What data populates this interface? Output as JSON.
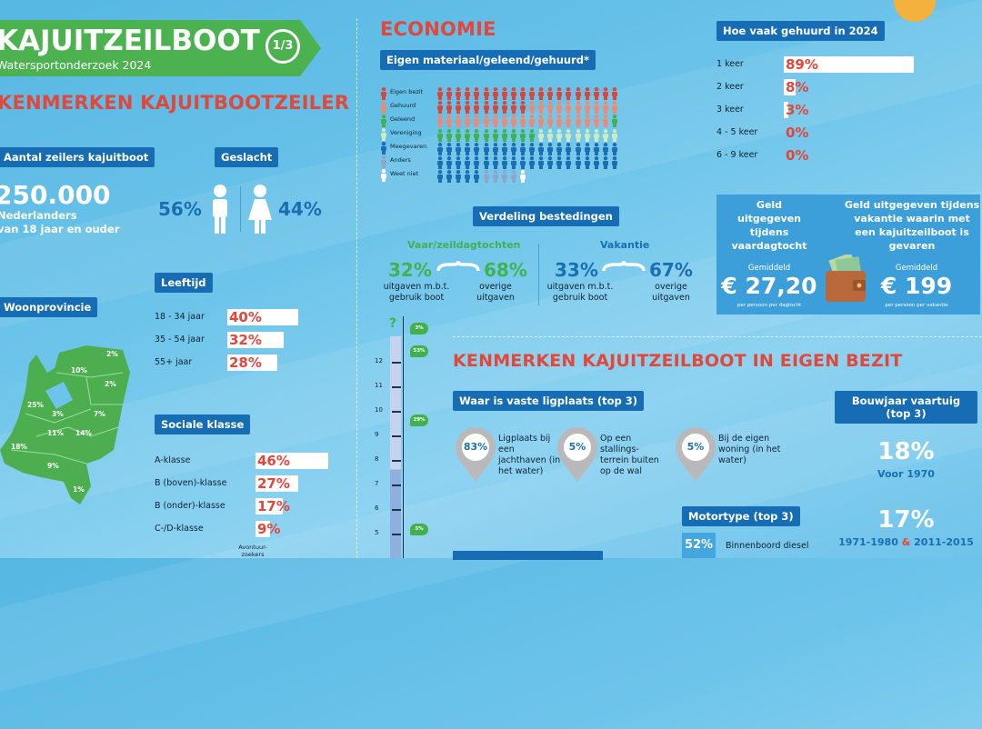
{
  "header": {
    "title": "KAJUITZEILBOOT",
    "subtitle": "Watersportonderzoek 2024",
    "page": "1/3"
  },
  "section1": {
    "title": "KENMERKEN KAJUITBOOTZEILER"
  },
  "aantal": {
    "label": "Aantal zeilers kajuitboot",
    "value": "250.000",
    "line1": "Nederlanders",
    "line2": "van 18 jaar en ouder"
  },
  "geslacht": {
    "label": "Geslacht",
    "male": "56%",
    "female": "44%"
  },
  "leeftijd": {
    "label": "Leeftijd",
    "rows": [
      {
        "label": "18 - 34 jaar",
        "value": "40%",
        "pct": 40
      },
      {
        "label": "35 - 54 jaar",
        "value": "32%",
        "pct": 32
      },
      {
        "label": "55+ jaar",
        "value": "28%",
        "pct": 28
      }
    ]
  },
  "woonprovincie": {
    "label": "Woonprovincie",
    "regions": [
      "2%",
      "10%",
      "2%",
      "25%",
      "3%",
      "7%",
      "11%",
      "14%",
      "18%",
      "9%",
      "1%"
    ]
  },
  "sociale": {
    "label": "Sociale klasse",
    "rows": [
      {
        "label": "A-klasse",
        "value": "46%",
        "pct": 46
      },
      {
        "label": "B (boven)-klasse",
        "value": "27%",
        "pct": 27
      },
      {
        "label": "B (onder)-klasse",
        "value": "17%",
        "pct": 17
      },
      {
        "label": "C-/D-klasse",
        "value": "9%",
        "pct": 9
      }
    ],
    "note": "Avontuur-zoekers"
  },
  "economie": {
    "title": "ECONOMIE",
    "materiaal_label": "Eigen materiaal/geleend/gehuurd*",
    "legend": [
      {
        "label": "Eigen bezit",
        "color": "#d9463c",
        "count": 30
      },
      {
        "label": "Gehuurd",
        "color": "#ef8a72",
        "count": 29
      },
      {
        "label": "Geleend",
        "color": "#3fb34f",
        "count": 12
      },
      {
        "label": "Vereniging",
        "color": "#c9ecc0",
        "count": 9
      },
      {
        "label": "Meegevaren",
        "color": "#1a6fb3",
        "count": 45
      },
      {
        "label": "Anders",
        "color": "#8fa6cc",
        "count": 4
      },
      {
        "label": "Weet niet",
        "color": "#ffffff",
        "count": 1
      }
    ],
    "verdeling_label": "Verdeling bestedingen",
    "dag": {
      "title": "Vaar/zeildagtochten",
      "boot": "32%",
      "overig": "68%"
    },
    "vakantie": {
      "title": "Vakantie",
      "boot": "33%",
      "overig": "67%"
    },
    "boot_caption1": "uitgaven m.b.t.",
    "boot_caption2": "gebruik boot",
    "overig_caption1": "overige",
    "overig_caption2": "uitgaven"
  },
  "gehuurd": {
    "label": "Hoe vaak gehuurd in 2024",
    "rows": [
      {
        "label": "1 keer",
        "value": "89%",
        "pct": 89
      },
      {
        "label": "2 keer",
        "value": "8%",
        "pct": 8
      },
      {
        "label": "3 keer",
        "value": "3%",
        "pct": 3
      },
      {
        "label": "4 - 5 keer",
        "value": "0%",
        "pct": 0
      },
      {
        "label": "6 - 9 keer",
        "value": "0%",
        "pct": 0
      }
    ]
  },
  "geld": {
    "dag_title": "Geld uitgegeven tijdens vaardagtocht",
    "vak_title": "Geld uitgegeven tijdens vakantie waarin met een kajuitzeilboot is gevaren",
    "gem": "Gemiddeld",
    "dag_value": "€ 27,20",
    "dag_sub": "per persoon per dagtocht",
    "vak_value": "€ 199",
    "vak_sub": "per persoon per vakantie"
  },
  "ruler": {
    "top": "?",
    "ticks": [
      "12",
      "11",
      "10",
      "9",
      "8",
      "7",
      "6",
      "5"
    ],
    "bubbles": [
      "3%",
      "53%",
      "29%",
      "5%"
    ]
  },
  "section3": {
    "title": "KENMERKEN KAJUITZEILBOOT IN EIGEN BEZIT",
    "ligplaats_label": "Waar is vaste ligplaats (top 3)",
    "ligplaats": [
      {
        "value": "83%",
        "text": "Ligplaats bij een jachthaven (in het water)"
      },
      {
        "value": "5%",
        "text": "Op een stallings-terrein buiten op de wal"
      },
      {
        "value": "5%",
        "text": "Bij de eigen woning (in het water)"
      }
    ],
    "bouwjaar_label": "Bouwjaar vaartuig (top 3)",
    "b1": "18%",
    "b1_label": "Voor 1970",
    "b2": "17%",
    "b2_label_a": "1971-1980",
    "b2_amp": "&",
    "b2_label_b": "2011-2015",
    "motor_label": "Motortype (top 3)",
    "motor_value": "52%",
    "motor_text": "Binnenboord diesel"
  }
}
